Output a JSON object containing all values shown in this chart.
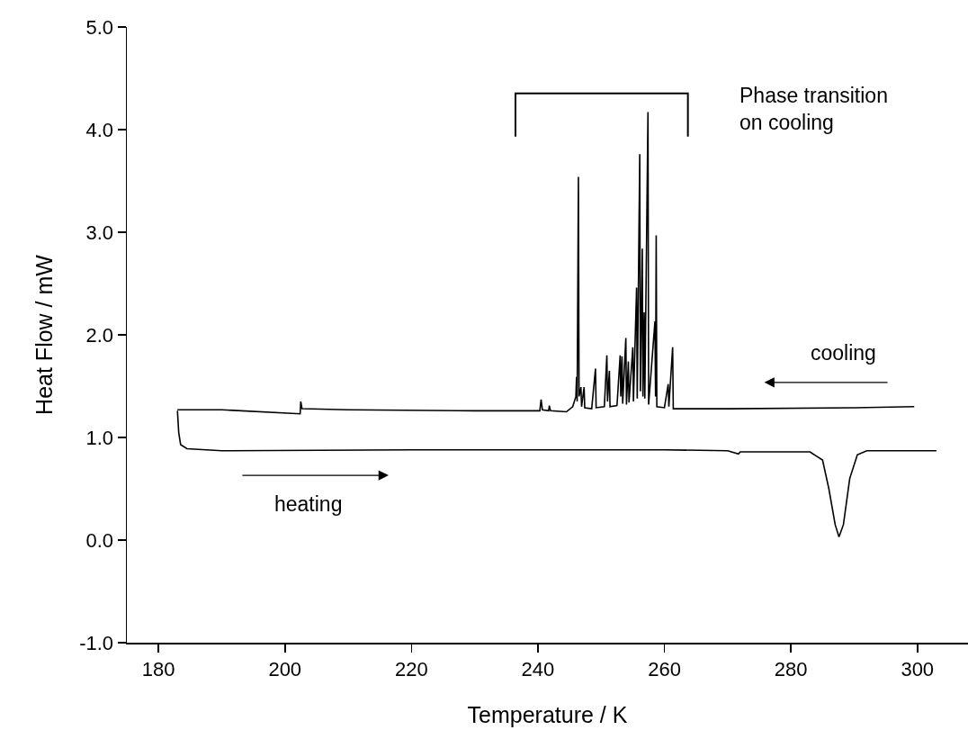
{
  "chart_data": {
    "type": "line",
    "xlabel": "Temperature / K",
    "ylabel": "Heat Flow / mW",
    "xlim": [
      175,
      308
    ],
    "xticks": [
      180,
      200,
      220,
      240,
      260,
      280,
      300
    ],
    "ylim": [
      -1,
      5
    ],
    "yticks": [
      {
        "value": -1,
        "label": "-1.0"
      },
      {
        "value": 0,
        "label": "0.0"
      },
      {
        "value": 1,
        "label": "1.0"
      },
      {
        "value": 2,
        "label": "2.0"
      },
      {
        "value": 3,
        "label": "3.0"
      },
      {
        "value": 4,
        "label": "4.0"
      },
      {
        "value": 5,
        "label": "5.0"
      }
    ],
    "grid": false,
    "series": [
      {
        "color": "#000000",
        "x": [
          183.0,
          190,
          202.4,
          202.5,
          202.7,
          210,
          230,
          240.3,
          240.5,
          240.7,
          241.7,
          241.8,
          242,
          244.5,
          245.5,
          246.0,
          246.1,
          246.2,
          246.4,
          246.5,
          246.8,
          246.9,
          247.3,
          247.4,
          248.5,
          249.1,
          249.2,
          250.5,
          250.9,
          251.0,
          251.3,
          251.4,
          252.5,
          253.0,
          253.1,
          253.3,
          253.4,
          253.9,
          254.0,
          254.3,
          254.4,
          255.0,
          255.1,
          255.6,
          255.7,
          256.1,
          256.2,
          256.5,
          256.6,
          256.8,
          256.9,
          257.4,
          257.5,
          258.5,
          258.6,
          258.7,
          258.8,
          260.0,
          260.6,
          260.7,
          261.3,
          261.4,
          270,
          290,
          299.5
        ],
        "values": [
          1.27,
          1.27,
          1.23,
          1.35,
          1.28,
          1.27,
          1.26,
          1.26,
          1.37,
          1.27,
          1.26,
          1.31,
          1.26,
          1.25,
          1.3,
          1.4,
          1.59,
          1.35,
          3.54,
          1.4,
          1.49,
          1.3,
          1.49,
          1.29,
          1.28,
          1.67,
          1.29,
          1.3,
          1.8,
          1.35,
          1.65,
          1.3,
          1.31,
          1.8,
          1.4,
          1.79,
          1.33,
          1.97,
          1.32,
          1.74,
          1.34,
          1.88,
          1.35,
          2.46,
          1.38,
          3.76,
          1.45,
          2.84,
          1.4,
          2.22,
          1.38,
          4.17,
          1.32,
          2.13,
          1.4,
          2.97,
          1.3,
          1.29,
          1.52,
          1.3,
          1.88,
          1.28,
          1.28,
          1.29,
          1.3
        ]
      },
      {
        "color": "#000000",
        "x": [
          183.0,
          183.2,
          183.5,
          184.5,
          190,
          220,
          260,
          270,
          271.7,
          272,
          283,
          285,
          286,
          287,
          287.6,
          288.3,
          289.3,
          290.5,
          292,
          303
        ],
        "values": [
          1.26,
          1.05,
          0.93,
          0.89,
          0.87,
          0.88,
          0.88,
          0.87,
          0.84,
          0.86,
          0.86,
          0.78,
          0.5,
          0.15,
          0.03,
          0.15,
          0.6,
          0.83,
          0.87,
          0.87
        ]
      }
    ],
    "annotations": [
      "heating",
      "cooling",
      "Phase transition\non cooling"
    ]
  }
}
